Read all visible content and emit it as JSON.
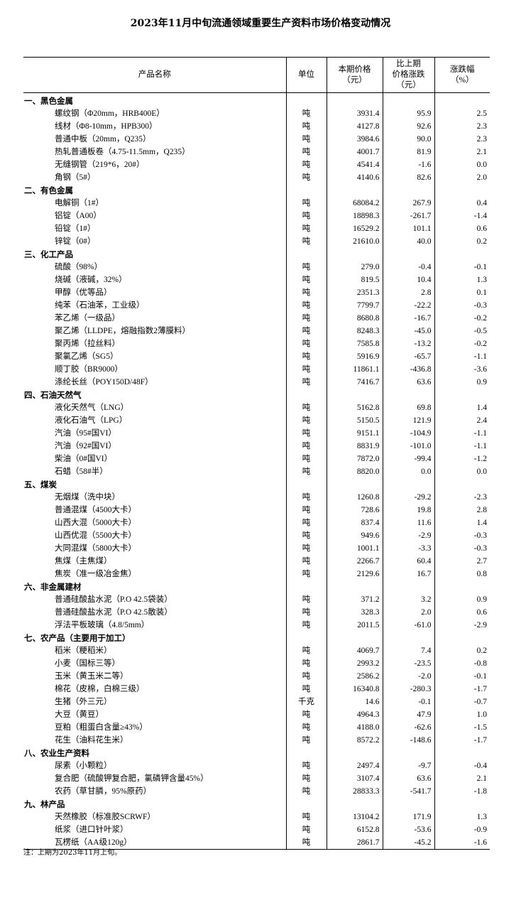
{
  "title": "2023年11月中旬流通领域重要生产资料市场价格变动情况",
  "headers": {
    "name": "产品名称",
    "unit": "单位",
    "price": [
      "本期价格",
      "（元）"
    ],
    "change": [
      "比上期",
      "价格涨跌",
      "（元）"
    ],
    "pct": [
      "涨跌幅",
      "（%）"
    ]
  },
  "sections": [
    {
      "name": "一、黑色金属",
      "items": [
        [
          "螺纹钢（Φ20mm，HRB400E）",
          "吨",
          "3931.4",
          "95.9",
          "2.5"
        ],
        [
          "线材（Φ8-10mm，HPB300）",
          "吨",
          "4127.8",
          "92.6",
          "2.3"
        ],
        [
          "普通中板（20mm，Q235）",
          "吨",
          "3984.6",
          "90.0",
          "2.3"
        ],
        [
          "热轧普通板卷（4.75-11.5mm，Q235）",
          "吨",
          "4001.7",
          "81.9",
          "2.1"
        ],
        [
          "无缝钢管（219*6，20#）",
          "吨",
          "4541.4",
          "-1.6",
          "0.0"
        ],
        [
          "角钢（5#）",
          "吨",
          "4140.6",
          "82.6",
          "2.0"
        ]
      ]
    },
    {
      "name": "二、有色金属",
      "items": [
        [
          "电解铜（1#）",
          "吨",
          "68084.2",
          "267.9",
          "0.4"
        ],
        [
          "铝锭（A00）",
          "吨",
          "18898.3",
          "-261.7",
          "-1.4"
        ],
        [
          "铅锭（1#）",
          "吨",
          "16529.2",
          "101.1",
          "0.6"
        ],
        [
          "锌锭（0#）",
          "吨",
          "21610.0",
          "40.0",
          "0.2"
        ]
      ]
    },
    {
      "name": "三、化工产品",
      "items": [
        [
          "硫酸（98%）",
          "吨",
          "279.0",
          "-0.4",
          "-0.1"
        ],
        [
          "烧碱（液碱，32%）",
          "吨",
          "819.5",
          "10.4",
          "1.3"
        ],
        [
          "甲醇（优等品）",
          "吨",
          "2351.3",
          "2.8",
          "0.1"
        ],
        [
          "纯苯（石油苯，工业级）",
          "吨",
          "7799.7",
          "-22.2",
          "-0.3"
        ],
        [
          "苯乙烯（一级品）",
          "吨",
          "8680.8",
          "-16.7",
          "-0.2"
        ],
        [
          "聚乙烯（LLDPE，熔融指数2薄膜料）",
          "吨",
          "8248.3",
          "-45.0",
          "-0.5"
        ],
        [
          "聚丙烯（拉丝料）",
          "吨",
          "7585.8",
          "-13.2",
          "-0.2"
        ],
        [
          "聚氯乙烯（SG5）",
          "吨",
          "5916.9",
          "-65.7",
          "-1.1"
        ],
        [
          "顺丁胶（BR9000）",
          "吨",
          "11861.1",
          "-436.8",
          "-3.6"
        ],
        [
          "涤纶长丝（POY150D/48F）",
          "吨",
          "7416.7",
          "63.6",
          "0.9"
        ]
      ]
    },
    {
      "name": "四、石油天然气",
      "items": [
        [
          "液化天然气（LNG）",
          "吨",
          "5162.8",
          "69.8",
          "1.4"
        ],
        [
          "液化石油气（LPG）",
          "吨",
          "5150.5",
          "121.9",
          "2.4"
        ],
        [
          "汽油（95#国VI）",
          "吨",
          "9151.1",
          "-104.9",
          "-1.1"
        ],
        [
          "汽油（92#国VI）",
          "吨",
          "8831.9",
          "-101.0",
          "-1.1"
        ],
        [
          "柴油（0#国VI）",
          "吨",
          "7872.0",
          "-99.4",
          "-1.2"
        ],
        [
          "石蜡（58#半）",
          "吨",
          "8820.0",
          "0.0",
          "0.0"
        ]
      ]
    },
    {
      "name": "五、煤炭",
      "items": [
        [
          "无烟煤（洗中块）",
          "吨",
          "1260.8",
          "-29.2",
          "-2.3"
        ],
        [
          "普通混煤（4500大卡）",
          "吨",
          "728.6",
          "19.8",
          "2.8"
        ],
        [
          "山西大混（5000大卡）",
          "吨",
          "837.4",
          "11.6",
          "1.4"
        ],
        [
          "山西优混（5500大卡）",
          "吨",
          "949.6",
          "-2.9",
          "-0.3"
        ],
        [
          "大同混煤（5800大卡）",
          "吨",
          "1001.1",
          "-3.3",
          "-0.3"
        ],
        [
          "焦煤（主焦煤）",
          "吨",
          "2266.7",
          "60.4",
          "2.7"
        ],
        [
          "焦炭（准一级冶金焦）",
          "吨",
          "2129.6",
          "16.7",
          "0.8"
        ]
      ]
    },
    {
      "name": "六、非金属建材",
      "items": [
        [
          "普通硅酸盐水泥（P.O 42.5袋装）",
          "吨",
          "371.2",
          "3.2",
          "0.9"
        ],
        [
          "普通硅酸盐水泥（P.O 42.5散装）",
          "吨",
          "328.3",
          "2.0",
          "0.6"
        ],
        [
          "浮法平板玻璃（4.8/5mm）",
          "吨",
          "2011.5",
          "-61.0",
          "-2.9"
        ]
      ]
    },
    {
      "name": "七、农产品（主要用于加工）",
      "items": [
        [
          "稻米（粳稻米）",
          "吨",
          "4069.7",
          "7.4",
          "0.2"
        ],
        [
          "小麦（国标三等）",
          "吨",
          "2993.2",
          "-23.5",
          "-0.8"
        ],
        [
          "玉米（黄玉米二等）",
          "吨",
          "2586.2",
          "-2.0",
          "-0.1"
        ],
        [
          "棉花（皮棉，白棉三级）",
          "吨",
          "16340.8",
          "-280.3",
          "-1.7"
        ],
        [
          "生猪（外三元）",
          "千克",
          "14.6",
          "-0.1",
          "-0.7"
        ],
        [
          "大豆（黄豆）",
          "吨",
          "4964.3",
          "47.9",
          "1.0"
        ],
        [
          "豆粕（粗蛋白含量≥43%）",
          "吨",
          "4188.0",
          "-62.6",
          "-1.5"
        ],
        [
          "花生（油料花生米）",
          "吨",
          "8572.2",
          "-148.6",
          "-1.7"
        ]
      ]
    },
    {
      "name": "八、农业生产资料",
      "items": [
        [
          "尿素（小颗粒）",
          "吨",
          "2497.4",
          "-9.7",
          "-0.4"
        ],
        [
          "复合肥（硫酸钾复合肥，氯磷钾含量45%）",
          "吨",
          "3107.4",
          "63.6",
          "2.1"
        ],
        [
          "农药（草甘膦，95%原药）",
          "吨",
          "28833.3",
          "-541.7",
          "-1.8"
        ]
      ]
    },
    {
      "name": "九、林产品",
      "items": [
        [
          "天然橡胶（标准胶SCRWF）",
          "吨",
          "13104.2",
          "171.9",
          "1.3"
        ],
        [
          "纸浆（进口针叶浆）",
          "吨",
          "6152.8",
          "-53.6",
          "-0.9"
        ],
        [
          "瓦楞纸（AA级120g）",
          "吨",
          "2861.7",
          "-45.2",
          "-1.6"
        ]
      ]
    }
  ],
  "note": "注：上期为2023年11月上旬。"
}
